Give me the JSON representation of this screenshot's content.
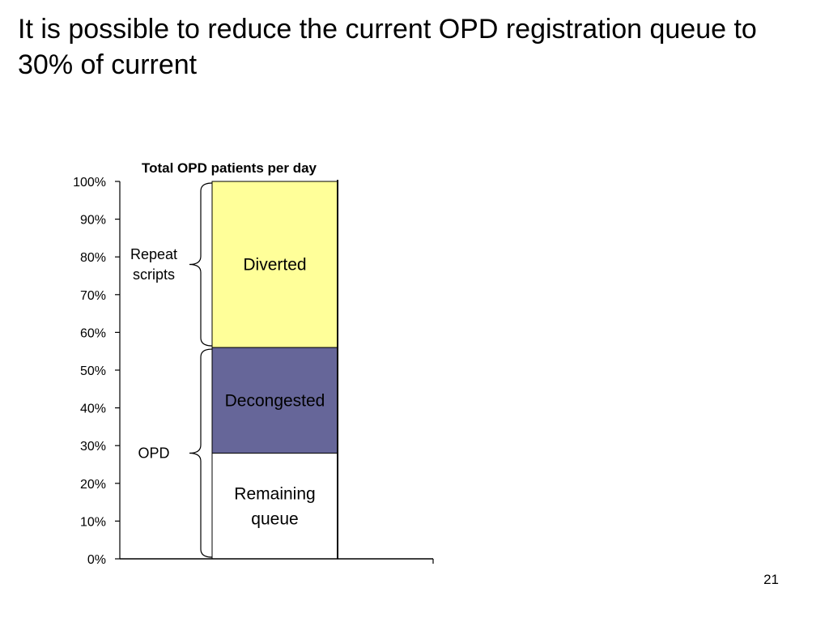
{
  "slide": {
    "title": "It is possible to reduce the current OPD registration queue to 30% of current",
    "page_number": "21"
  },
  "chart_data": {
    "type": "bar",
    "title": "Total OPD patients per day",
    "ylim": [
      0,
      100
    ],
    "yticks": [
      "0%",
      "10%",
      "20%",
      "30%",
      "40%",
      "50%",
      "60%",
      "70%",
      "80%",
      "90%",
      "100%"
    ],
    "stacked": true,
    "segments": [
      {
        "name": "Remaining queue",
        "label_lines": [
          "Remaining",
          "queue"
        ],
        "start": 0,
        "end": 28,
        "color": "#ffffff",
        "text_color": "#000000"
      },
      {
        "name": "Decongested",
        "label_lines": [
          "Decongested"
        ],
        "start": 28,
        "end": 56,
        "color": "#666699",
        "text_color": "#000000"
      },
      {
        "name": "Diverted",
        "label_lines": [
          "Diverted"
        ],
        "start": 56,
        "end": 100,
        "color": "#ffff99",
        "text_color": "#000000"
      }
    ],
    "braces": [
      {
        "label_lines": [
          "OPD"
        ],
        "start": 0,
        "end": 56
      },
      {
        "label_lines": [
          "Repeat",
          "scripts"
        ],
        "start": 56,
        "end": 100
      }
    ]
  }
}
